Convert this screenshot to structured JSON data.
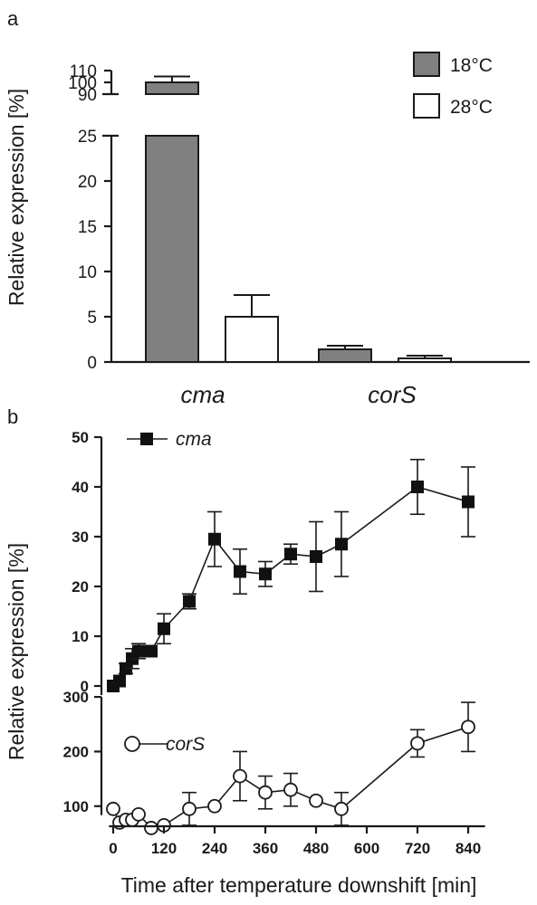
{
  "chart_data": [
    {
      "type": "bar",
      "panel_label": "a",
      "categories": [
        "cma",
        "corS"
      ],
      "series": [
        {
          "name": "18°C",
          "color": "#808080",
          "values": [
            100,
            1.4
          ],
          "errors": [
            5,
            0.4
          ]
        },
        {
          "name": "28°C",
          "color": "#ffffff",
          "values": [
            5.0,
            0.4
          ],
          "errors": [
            2.4,
            0.3
          ]
        }
      ],
      "ylabel": "Relative expression [%]",
      "ylim": [
        0,
        110
      ],
      "y_break": [
        25,
        90
      ],
      "yticks_lower": [
        0,
        5,
        10,
        15,
        20,
        25
      ],
      "yticks_upper": [
        90,
        100,
        110
      ],
      "yticks_lower_labels": [
        "0",
        "5",
        "10",
        "15",
        "20",
        "25"
      ],
      "yticks_upper_labels": [
        "90",
        "100",
        "110"
      ],
      "legend_position": "top-right"
    },
    {
      "type": "line",
      "panel_label": "b",
      "xlabel": "Time after temperature downshift [min]",
      "ylabel": "Relative expression [%]",
      "xticks": [
        0,
        120,
        240,
        360,
        480,
        600,
        720,
        840
      ],
      "xtick_labels": [
        "0",
        "120",
        "240",
        "360",
        "480",
        "600",
        "720",
        "840"
      ],
      "xlim": [
        -10,
        880
      ],
      "series": [
        {
          "name": "cma",
          "marker": "filled-square",
          "ylim": [
            -2,
            50
          ],
          "yticks": [
            0,
            10,
            20,
            30,
            40,
            50
          ],
          "ytick_labels": [
            "0",
            "10",
            "20",
            "30",
            "40",
            "50"
          ],
          "x": [
            0,
            15,
            30,
            45,
            60,
            90,
            120,
            180,
            240,
            300,
            360,
            420,
            480,
            540,
            720,
            840
          ],
          "y": [
            0,
            1,
            3.5,
            5.5,
            7,
            7,
            11.5,
            17,
            29.5,
            23,
            22.5,
            26.5,
            26,
            28.5,
            40,
            37
          ],
          "err": [
            0,
            0,
            1,
            2,
            1.5,
            0,
            3,
            1.5,
            5.5,
            4.5,
            2.5,
            2,
            7,
            6.5,
            5.5,
            7
          ]
        },
        {
          "name": "corS",
          "marker": "open-circle",
          "ylim": [
            40,
            320
          ],
          "yticks": [
            100,
            200,
            300
          ],
          "ytick_labels": [
            "100",
            "200",
            "300"
          ],
          "x": [
            0,
            15,
            30,
            45,
            60,
            90,
            120,
            180,
            240,
            300,
            360,
            420,
            480,
            540,
            720,
            840
          ],
          "y": [
            95,
            70,
            75,
            75,
            85,
            60,
            65,
            95,
            100,
            155,
            125,
            130,
            110,
            95,
            215,
            245
          ],
          "err": [
            0,
            0,
            0,
            0,
            0,
            0,
            0,
            30,
            0,
            45,
            30,
            30,
            0,
            30,
            25,
            45
          ]
        }
      ]
    }
  ]
}
